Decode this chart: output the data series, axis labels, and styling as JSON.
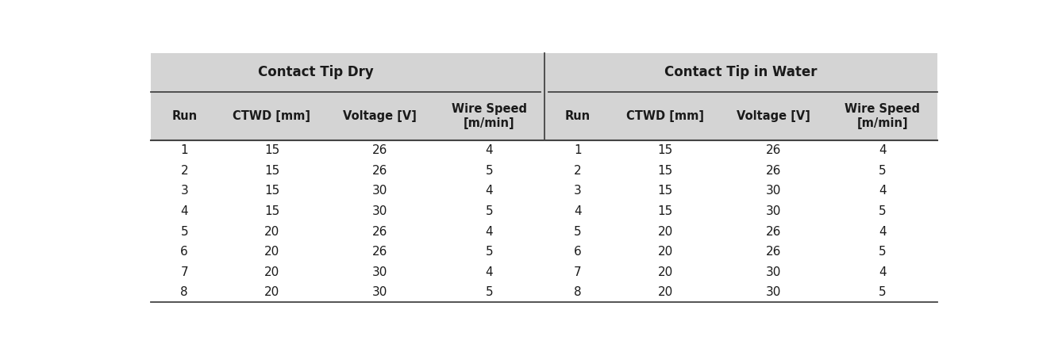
{
  "group1_header": "Contact Tip Dry",
  "group2_header": "Contact Tip in Water",
  "col_headers": [
    "Run",
    "CTWD [mm]",
    "Voltage [V]",
    "Wire Speed\n[m/min]"
  ],
  "data": [
    [
      1,
      15,
      26,
      4
    ],
    [
      2,
      15,
      26,
      5
    ],
    [
      3,
      15,
      30,
      4
    ],
    [
      4,
      15,
      30,
      5
    ],
    [
      5,
      20,
      26,
      4
    ],
    [
      6,
      20,
      26,
      5
    ],
    [
      7,
      20,
      30,
      4
    ],
    [
      8,
      20,
      30,
      5
    ]
  ],
  "header_bg": "#d4d4d4",
  "row_bg": "#ffffff",
  "text_color": "#1a1a1a",
  "border_color": "#444444",
  "fig_bg": "#ffffff",
  "group_header_fontsize": 12,
  "col_header_fontsize": 10.5,
  "data_fontsize": 11,
  "col_rel": [
    0.17,
    0.275,
    0.275,
    0.28
  ]
}
